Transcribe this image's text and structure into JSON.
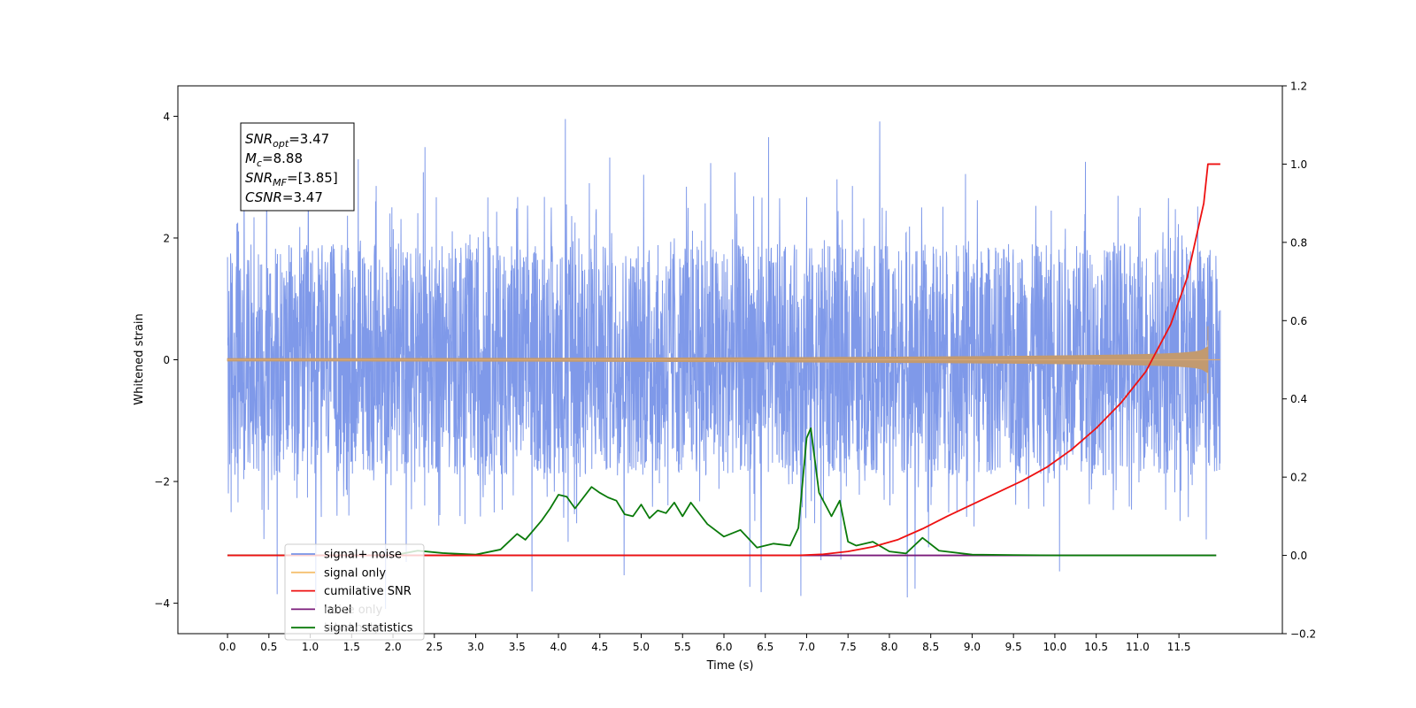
{
  "chart_data": {
    "type": "line",
    "xlabel": "Time (s)",
    "ylabel": "Whitened strain",
    "xlim": [
      -0.6,
      12.75
    ],
    "ylim_left": [
      -4.5,
      4.5
    ],
    "ylim_right": [
      -0.2,
      1.2
    ],
    "x_ticks": [
      "0.0",
      "0.5",
      "1.0",
      "1.5",
      "2.0",
      "2.5",
      "3.0",
      "3.5",
      "4.0",
      "4.5",
      "5.0",
      "5.5",
      "6.0",
      "6.5",
      "7.0",
      "7.5",
      "8.0",
      "8.5",
      "9.0",
      "9.5",
      "10.0",
      "10.5",
      "11.0",
      "11.5"
    ],
    "y_left_ticks": [
      "4",
      "2",
      "0",
      "−2",
      "−4"
    ],
    "y_right_ticks": [
      "1.2",
      "1.0",
      "0.8",
      "0.6",
      "0.4",
      "0.2",
      "0.0",
      "−0.2"
    ],
    "noise_band": {
      "typical_amplitude": 2.0,
      "max_peak": 4.1,
      "min_peak": -4.1,
      "duration_s": 12.0
    },
    "signal_only": {
      "chirp_end_time_s": 11.85,
      "peak_amplitude": 0.55
    },
    "series": [
      {
        "name": "signal+ noise",
        "color": "#7894e8"
      },
      {
        "name": "signal only",
        "color": "#f5c070"
      },
      {
        "name": "cumilative SNR",
        "color": "#ee1111",
        "axis": "right",
        "x": [
          0,
          6.9,
          7.2,
          7.5,
          7.8,
          8.1,
          8.4,
          8.7,
          9.0,
          9.3,
          9.6,
          9.9,
          10.2,
          10.5,
          10.8,
          11.1,
          11.4,
          11.6,
          11.8,
          11.85,
          12.0
        ],
        "y": [
          0,
          0,
          0.003,
          0.01,
          0.022,
          0.04,
          0.068,
          0.1,
          0.13,
          0.16,
          0.19,
          0.225,
          0.27,
          0.325,
          0.39,
          0.47,
          0.59,
          0.71,
          0.9,
          1.0,
          1.0
        ]
      },
      {
        "name": "label",
        "color": "#7a1a7a",
        "axis": "right",
        "x": [
          0,
          11.95
        ],
        "y": [
          0,
          0
        ]
      },
      {
        "name": "signal statistics",
        "color": "#0a7a0a",
        "axis": "right",
        "x": [
          0,
          1.0,
          2.0,
          2.3,
          2.6,
          3.0,
          3.3,
          3.5,
          3.6,
          3.8,
          3.9,
          4.0,
          4.1,
          4.2,
          4.4,
          4.5,
          4.6,
          4.7,
          4.8,
          4.9,
          5.0,
          5.1,
          5.2,
          5.3,
          5.4,
          5.5,
          5.6,
          5.8,
          6.0,
          6.2,
          6.4,
          6.6,
          6.8,
          6.9,
          7.0,
          7.05,
          7.15,
          7.3,
          7.4,
          7.5,
          7.6,
          7.8,
          8.0,
          8.2,
          8.4,
          8.6,
          9.0,
          10.0,
          11.95
        ],
        "y": [
          0,
          0,
          0,
          0.012,
          0.006,
          0.002,
          0.015,
          0.055,
          0.04,
          0.09,
          0.12,
          0.155,
          0.15,
          0.12,
          0.175,
          0.16,
          0.148,
          0.14,
          0.105,
          0.1,
          0.13,
          0.095,
          0.115,
          0.108,
          0.135,
          0.1,
          0.135,
          0.08,
          0.048,
          0.065,
          0.02,
          0.03,
          0.025,
          0.07,
          0.3,
          0.325,
          0.16,
          0.1,
          0.14,
          0.035,
          0.025,
          0.035,
          0.01,
          0.005,
          0.045,
          0.012,
          0.002,
          0,
          0
        ]
      }
    ],
    "legend": {
      "placement": "lower-left",
      "entries": [
        "signal+ noise",
        "signal only",
        "cumilative SNR",
        "label",
        "signal statistics"
      ],
      "ghost_entries": [
        "noise only",
        "label only"
      ]
    },
    "annotation": {
      "lines": [
        {
          "var": "SNR",
          "sub": "opt",
          "value": "=3.47"
        },
        {
          "var": "M",
          "sub": "c",
          "value": "=8.88"
        },
        {
          "var": "SNR",
          "sub": "MF",
          "value": "=[3.85]"
        },
        {
          "var": "CSNR",
          "sub": "",
          "value": "=3.47"
        }
      ]
    }
  }
}
